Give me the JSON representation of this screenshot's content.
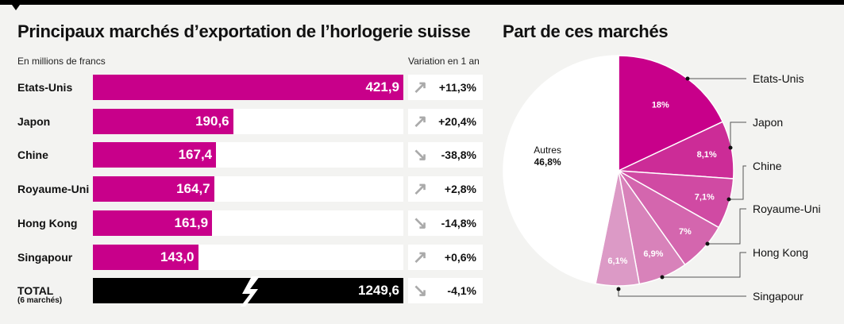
{
  "bar_title": "Principaux marchés d’exportation de l’horlogerie suisse",
  "pie_title": "Part de ces marchés",
  "unit_label": "En millions de francs",
  "variation_label": "Variation en 1 an",
  "colors": {
    "accent": "#c8008a",
    "total": "#000000",
    "arrow": "#aaaaaa"
  },
  "chart_data": [
    {
      "type": "bar",
      "orientation": "horizontal",
      "title": "Principaux marchés d’exportation de l’horlogerie suisse",
      "categories": [
        "Etats-Unis",
        "Japon",
        "Chine",
        "Royaume-Uni",
        "Hong Kong",
        "Singapour"
      ],
      "values": [
        421.9,
        190.6,
        167.4,
        164.7,
        161.9,
        143.0
      ],
      "value_labels": [
        "421,9",
        "190,6",
        "167,4",
        "164,7",
        "161,9",
        "143,0"
      ],
      "variation": [
        "+11,3%",
        "+20,4%",
        "-38,8%",
        "+2,8%",
        "-14,8%",
        "+0,6%"
      ],
      "variation_direction": [
        "up",
        "up",
        "down",
        "up",
        "down",
        "up"
      ],
      "total": {
        "label": "TOTAL",
        "sublabel": "(6 marchés)",
        "value": 1249.6,
        "value_label": "1249,6",
        "variation": "-4,1%",
        "variation_direction": "down",
        "axis_break": true
      }
    },
    {
      "type": "pie",
      "title": "Part de ces marchés",
      "slices": [
        {
          "label": "Etats-Unis",
          "value": 18,
          "value_label": "18%",
          "color": "#c8008a"
        },
        {
          "label": "Japon",
          "value": 8.1,
          "value_label": "8,1%",
          "color": "#cc2c97"
        },
        {
          "label": "Chine",
          "value": 7.1,
          "value_label": "7,1%",
          "color": "#d04aa3"
        },
        {
          "label": "Royaume-Uni",
          "value": 7,
          "value_label": "7%",
          "color": "#d466ae"
        },
        {
          "label": "Hong Kong",
          "value": 6.9,
          "value_label": "6,9%",
          "color": "#d882ba"
        },
        {
          "label": "Singapour",
          "value": 6.1,
          "value_label": "6,1%",
          "color": "#dc9ac6"
        },
        {
          "label": "Autres",
          "value": 46.8,
          "value_label": "46,8%",
          "color": "#ffffff"
        }
      ]
    }
  ]
}
